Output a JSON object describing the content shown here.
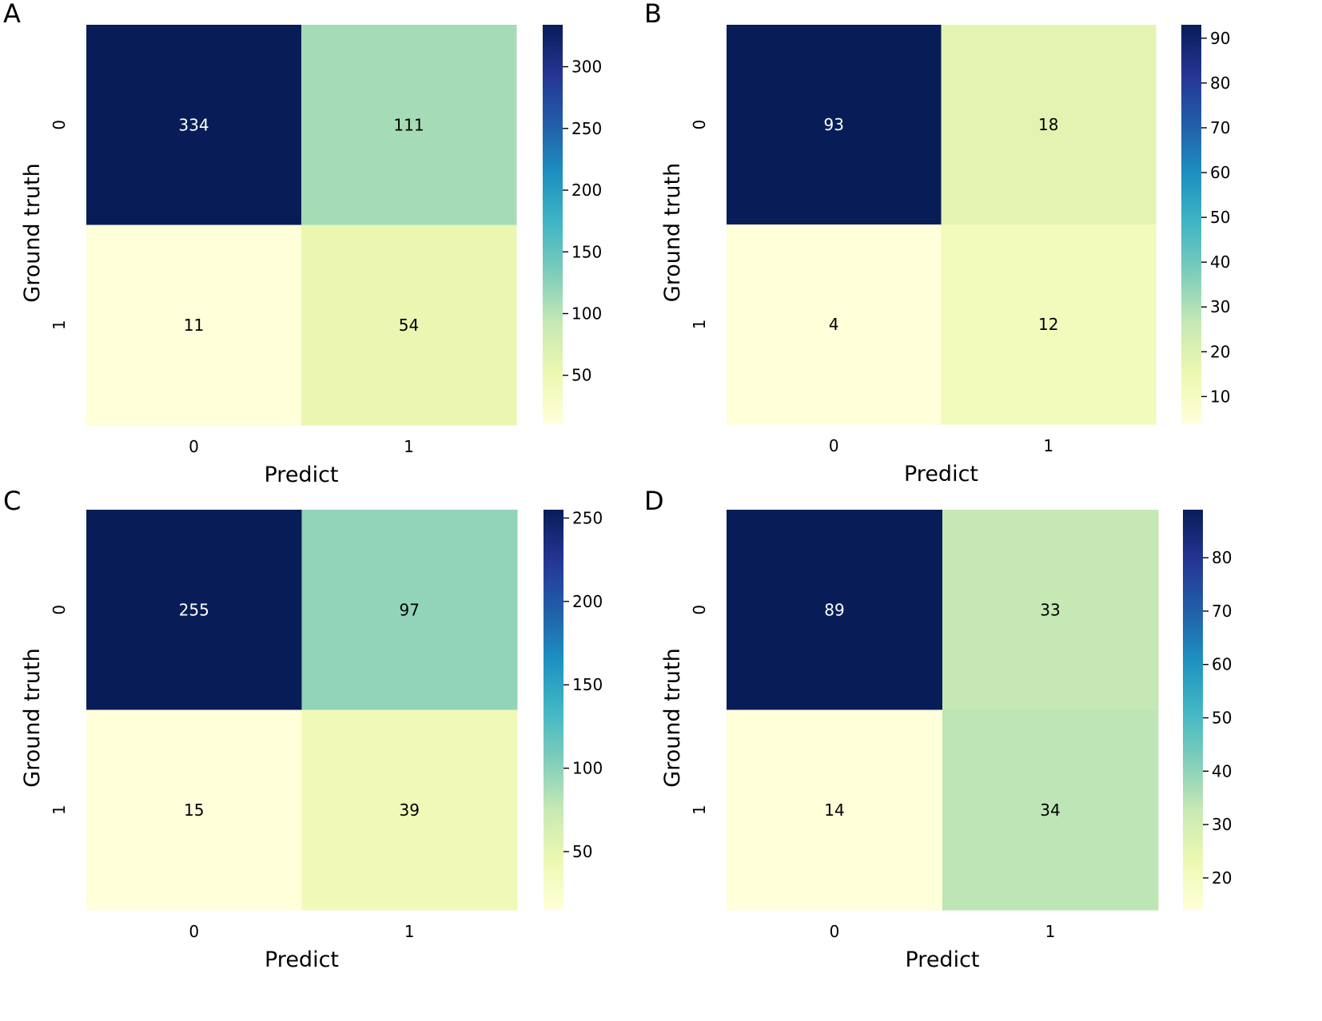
{
  "chart_data": [
    {
      "type": "heatmap",
      "panel_label": "A",
      "x_categories": [
        "0",
        "1"
      ],
      "y_categories": [
        "0",
        "1"
      ],
      "values": [
        [
          334,
          111
        ],
        [
          11,
          54
        ]
      ],
      "xlabel": "Predict",
      "ylabel": "Ground truth",
      "colormap": "YlGnBu",
      "colorbar": {
        "min": 11,
        "max": 334,
        "ticks": [
          50,
          100,
          150,
          200,
          250,
          300
        ]
      },
      "grid": false
    },
    {
      "type": "heatmap",
      "panel_label": "B",
      "x_categories": [
        "0",
        "1"
      ],
      "y_categories": [
        "0",
        "1"
      ],
      "values": [
        [
          93,
          18
        ],
        [
          4,
          12
        ]
      ],
      "xlabel": "Predict",
      "ylabel": "Ground truth",
      "colormap": "YlGnBu",
      "colorbar": {
        "min": 4,
        "max": 93,
        "ticks": [
          10,
          20,
          30,
          40,
          50,
          60,
          70,
          80,
          90
        ]
      },
      "grid": false
    },
    {
      "type": "heatmap",
      "panel_label": "C",
      "x_categories": [
        "0",
        "1"
      ],
      "y_categories": [
        "0",
        "1"
      ],
      "values": [
        [
          255,
          97
        ],
        [
          15,
          39
        ]
      ],
      "xlabel": "Predict",
      "ylabel": "Ground truth",
      "colormap": "YlGnBu",
      "colorbar": {
        "min": 15,
        "max": 255,
        "ticks": [
          50,
          100,
          150,
          200,
          250
        ]
      },
      "grid": false
    },
    {
      "type": "heatmap",
      "panel_label": "D",
      "x_categories": [
        "0",
        "1"
      ],
      "y_categories": [
        "0",
        "1"
      ],
      "values": [
        [
          89,
          33
        ],
        [
          14,
          34
        ]
      ],
      "xlabel": "Predict",
      "ylabel": "Ground truth",
      "colormap": "YlGnBu",
      "colorbar": {
        "min": 14,
        "max": 89,
        "ticks": [
          20,
          30,
          40,
          50,
          60,
          70,
          80
        ]
      },
      "grid": false
    }
  ]
}
